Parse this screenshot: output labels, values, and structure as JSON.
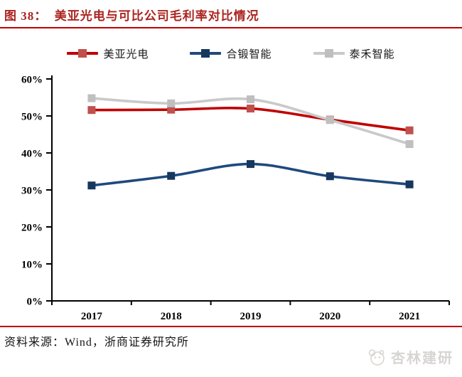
{
  "title": {
    "prefix": "图 38：",
    "text": "美亚光电与可比公司毛利率对比情况"
  },
  "colors": {
    "accent_red": "#c00000",
    "title_red": "#ab2420",
    "axis_black": "#000000",
    "watermark_gray": "#d7d5d2"
  },
  "chart_data": {
    "type": "line",
    "title": "美亚光电与可比公司毛利率对比情况",
    "categories": [
      "2017",
      "2018",
      "2019",
      "2020",
      "2021"
    ],
    "series": [
      {
        "name": "美亚光电",
        "values": [
          51.6,
          51.7,
          52.0,
          49.0,
          46.1
        ],
        "line_color": "#c00000",
        "marker_color": "#c0504d"
      },
      {
        "name": "合锻智能",
        "values": [
          31.2,
          33.8,
          37.0,
          33.7,
          31.5
        ],
        "line_color": "#1f497d",
        "marker_color": "#17375e"
      },
      {
        "name": "泰禾智能",
        "values": [
          54.8,
          53.4,
          54.5,
          48.9,
          42.4
        ],
        "line_color": "#c9c9c9",
        "marker_color": "#bfbfbf"
      }
    ],
    "xlabel": "",
    "ylabel": "",
    "ylim": [
      0,
      60
    ],
    "ytick_step": 10,
    "ytick_labels": [
      "0%",
      "10%",
      "20%",
      "30%",
      "40%",
      "50%",
      "60%"
    ],
    "grid": false,
    "legend_position": "top",
    "smoothed_lines": true,
    "marker_shape": "square"
  },
  "source": {
    "label": "资料来源：Wind，浙商证券研究所"
  },
  "watermark": {
    "icon": "panda-logo-icon",
    "text": "杏林建研"
  }
}
